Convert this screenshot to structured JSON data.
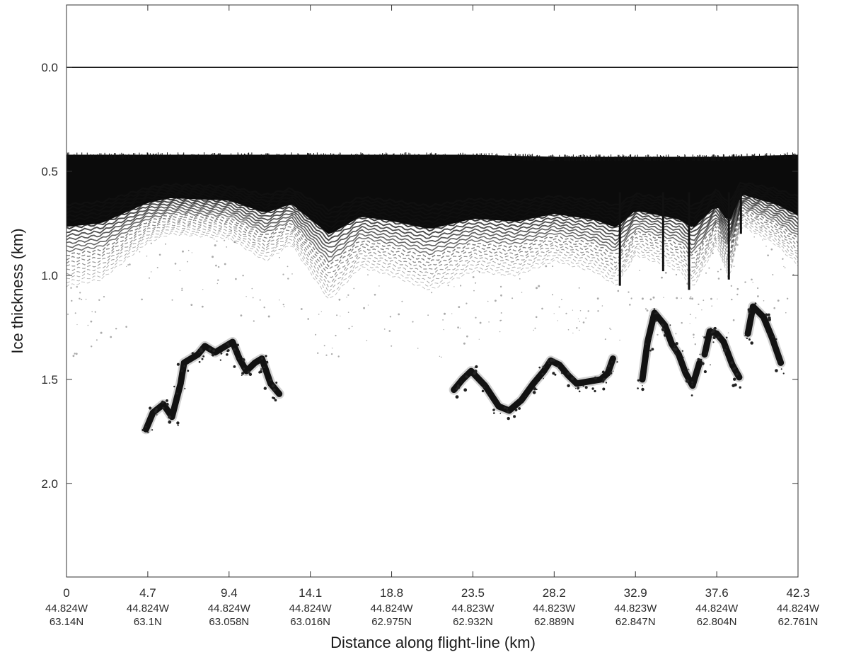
{
  "chart_data": {
    "type": "radargram",
    "xlabel": "Distance along flight-line (km)",
    "ylabel": "Ice thickness (km)",
    "xlim": [
      0,
      42.3
    ],
    "ylim": [
      2.45,
      -0.3
    ],
    "y_inverted": true,
    "grid": false,
    "x_ticks": [
      {
        "value": 0,
        "label": "0",
        "lon": "44.824W",
        "lat": "63.14N"
      },
      {
        "value": 4.7,
        "label": "4.7",
        "lon": "44.824W",
        "lat": "63.1N"
      },
      {
        "value": 9.4,
        "label": "9.4",
        "lon": "44.824W",
        "lat": "63.058N"
      },
      {
        "value": 14.1,
        "label": "14.1",
        "lon": "44.824W",
        "lat": "63.016N"
      },
      {
        "value": 18.8,
        "label": "18.8",
        "lon": "44.824W",
        "lat": "62.975N"
      },
      {
        "value": 23.5,
        "label": "23.5",
        "lon": "44.823W",
        "lat": "62.932N"
      },
      {
        "value": 28.2,
        "label": "28.2",
        "lon": "44.823W",
        "lat": "62.889N"
      },
      {
        "value": 32.9,
        "label": "32.9",
        "lon": "44.823W",
        "lat": "62.847N"
      },
      {
        "value": 37.6,
        "label": "37.6",
        "lon": "44.824W",
        "lat": "62.804N"
      },
      {
        "value": 42.3,
        "label": "42.3",
        "lon": "44.824W",
        "lat": "62.761N"
      }
    ],
    "y_ticks": [
      {
        "value": 0.0,
        "label": "0.0"
      },
      {
        "value": 0.5,
        "label": "0.5"
      },
      {
        "value": 1.0,
        "label": "1.0"
      },
      {
        "value": 1.5,
        "label": "1.5"
      },
      {
        "value": 2.0,
        "label": "2.0"
      }
    ],
    "surface_reflection_depth": 0.0,
    "firn_layer": {
      "top": [
        [
          0,
          0.42
        ],
        [
          4.7,
          0.42
        ],
        [
          9.4,
          0.42
        ],
        [
          14.1,
          0.42
        ],
        [
          18.8,
          0.42
        ],
        [
          23.5,
          0.42
        ],
        [
          28.2,
          0.43
        ],
        [
          32.9,
          0.43
        ],
        [
          37.6,
          0.43
        ],
        [
          42.3,
          0.42
        ]
      ],
      "bottom": [
        [
          0,
          1.05
        ],
        [
          2,
          1.02
        ],
        [
          4.7,
          0.84
        ],
        [
          6,
          0.8
        ],
        [
          9.4,
          0.82
        ],
        [
          11.5,
          0.93
        ],
        [
          13,
          0.85
        ],
        [
          15.2,
          1.12
        ],
        [
          17,
          0.96
        ],
        [
          18.8,
          1.0
        ],
        [
          21,
          1.07
        ],
        [
          23.5,
          0.98
        ],
        [
          26,
          1.0
        ],
        [
          28.2,
          0.93
        ],
        [
          30.5,
          0.98
        ],
        [
          31.8,
          1.05
        ],
        [
          32.9,
          0.9
        ],
        [
          35.5,
          0.98
        ],
        [
          36.2,
          1.06
        ],
        [
          37.6,
          0.85
        ],
        [
          38.3,
          1.02
        ],
        [
          39,
          0.76
        ],
        [
          41,
          0.85
        ],
        [
          42.3,
          0.95
        ]
      ]
    },
    "bed_segments": [
      {
        "points": [
          [
            4.6,
            1.74
          ],
          [
            5.0,
            1.66
          ],
          [
            5.6,
            1.62
          ],
          [
            6.1,
            1.68
          ],
          [
            6.6,
            1.52
          ],
          [
            6.8,
            1.42
          ],
          [
            7.6,
            1.38
          ],
          [
            8.0,
            1.34
          ],
          [
            8.6,
            1.37
          ],
          [
            9.2,
            1.34
          ],
          [
            9.6,
            1.32
          ],
          [
            10.0,
            1.4
          ],
          [
            10.4,
            1.46
          ],
          [
            10.9,
            1.42
          ],
          [
            11.3,
            1.4
          ],
          [
            11.8,
            1.52
          ],
          [
            12.3,
            1.57
          ]
        ]
      },
      {
        "points": [
          [
            22.4,
            1.55
          ],
          [
            22.9,
            1.5
          ],
          [
            23.4,
            1.46
          ],
          [
            24.2,
            1.53
          ],
          [
            25.0,
            1.63
          ],
          [
            25.6,
            1.65
          ],
          [
            26.3,
            1.6
          ],
          [
            27.0,
            1.52
          ],
          [
            27.6,
            1.46
          ],
          [
            28.0,
            1.41
          ],
          [
            28.5,
            1.43
          ],
          [
            29.0,
            1.48
          ],
          [
            29.5,
            1.52
          ],
          [
            30.2,
            1.51
          ],
          [
            30.9,
            1.5
          ],
          [
            31.3,
            1.47
          ],
          [
            31.6,
            1.4
          ]
        ]
      },
      {
        "points": [
          [
            33.3,
            1.5
          ],
          [
            33.6,
            1.32
          ],
          [
            34.0,
            1.18
          ],
          [
            34.6,
            1.24
          ],
          [
            35.0,
            1.33
          ],
          [
            35.4,
            1.38
          ],
          [
            35.8,
            1.47
          ],
          [
            36.2,
            1.53
          ],
          [
            36.6,
            1.42
          ]
        ]
      },
      {
        "points": [
          [
            36.9,
            1.38
          ],
          [
            37.2,
            1.27
          ],
          [
            37.6,
            1.28
          ],
          [
            38.0,
            1.32
          ],
          [
            38.5,
            1.43
          ],
          [
            38.9,
            1.49
          ]
        ]
      },
      {
        "points": [
          [
            39.4,
            1.28
          ],
          [
            39.7,
            1.15
          ],
          [
            40.3,
            1.2
          ],
          [
            40.8,
            1.3
          ],
          [
            41.3,
            1.42
          ]
        ]
      }
    ]
  }
}
